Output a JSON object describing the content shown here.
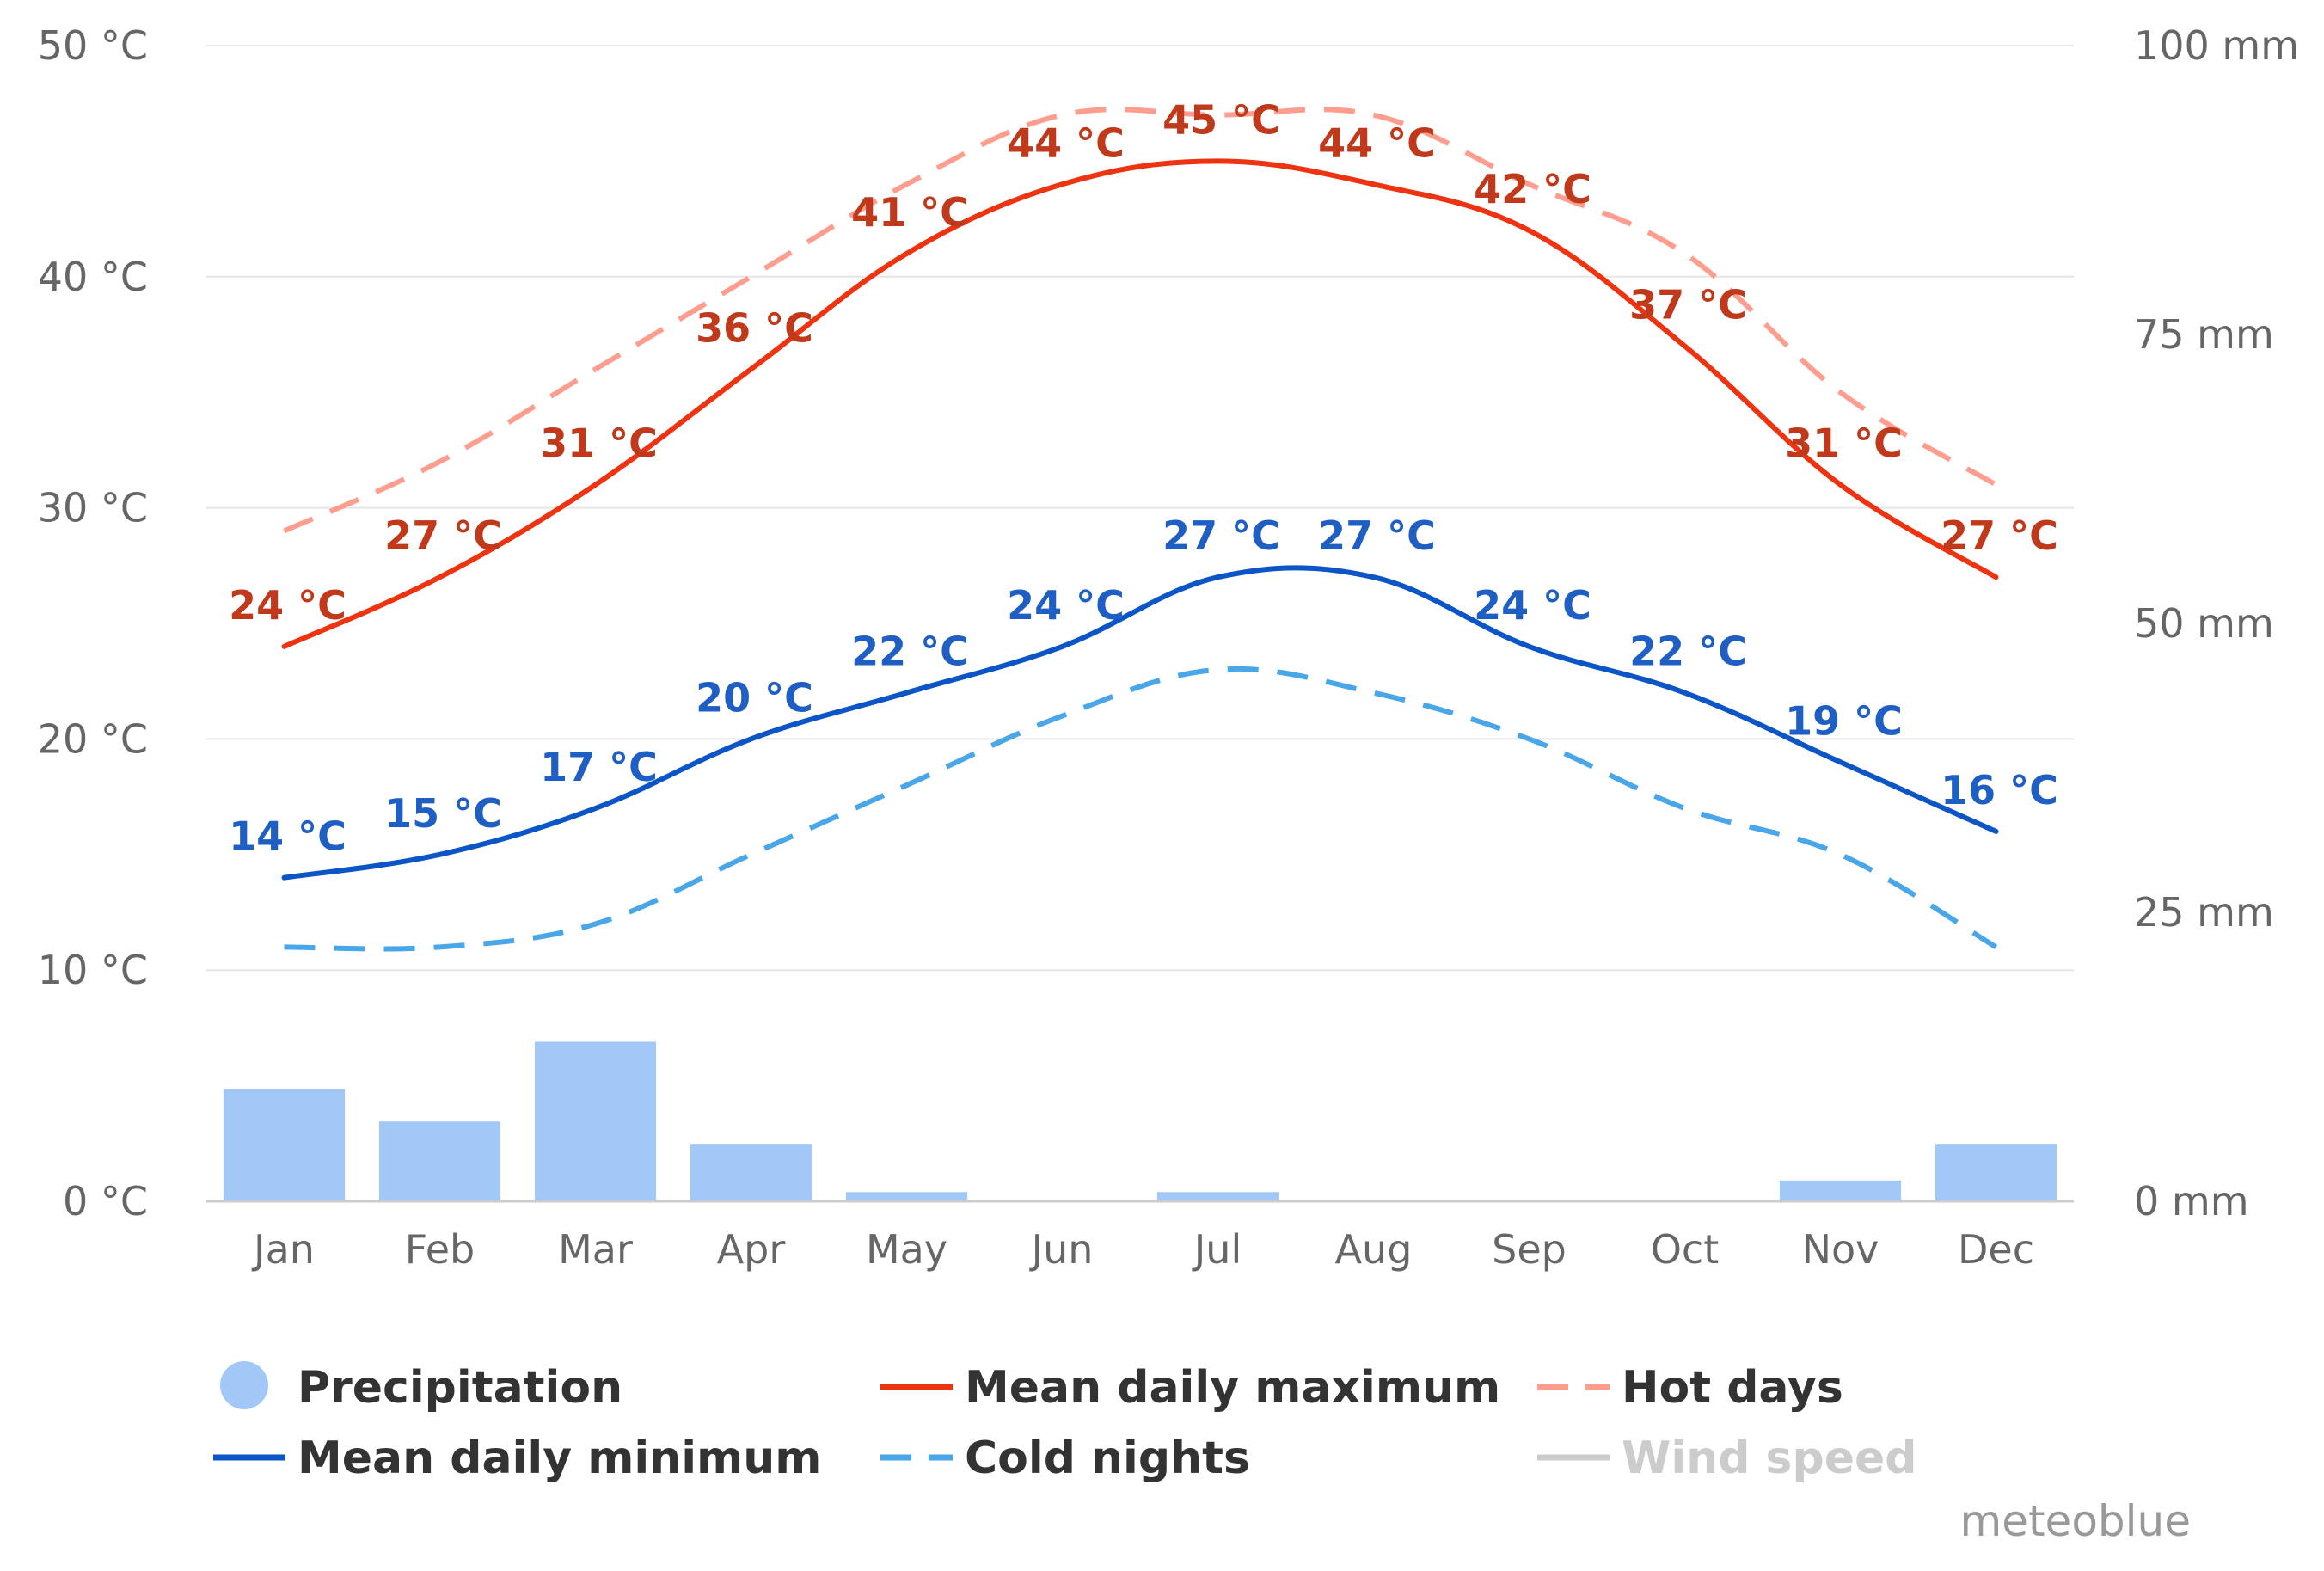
{
  "chart_data": {
    "type": "line",
    "categories": [
      "Jan",
      "Feb",
      "Mar",
      "Apr",
      "May",
      "Jun",
      "Jul",
      "Aug",
      "Sep",
      "Oct",
      "Nov",
      "Dec"
    ],
    "y_left": {
      "range": [
        0,
        50
      ],
      "ticks": [
        0,
        10,
        20,
        30,
        40,
        50
      ],
      "tick_labels": [
        "0 °C",
        "10 °C",
        "20 °C",
        "30 °C",
        "40 °C",
        "50 °C"
      ]
    },
    "y_right": {
      "range": [
        0,
        100
      ],
      "ticks": [
        0,
        25,
        50,
        75,
        100
      ],
      "tick_labels": [
        "0 mm",
        "25 mm",
        "50 mm",
        "75 mm",
        "100 mm"
      ]
    },
    "grid": true,
    "series": [
      {
        "name": "Hot days",
        "kind": "line",
        "style": "dashed",
        "axis": "left",
        "color": "#ff9e8f",
        "values": [
          29,
          32,
          36,
          40,
          44,
          47,
          47,
          47,
          44,
          41,
          35,
          31
        ]
      },
      {
        "name": "Mean daily maximum",
        "kind": "line",
        "style": "solid",
        "axis": "left",
        "color": "#ee3311",
        "values": [
          24,
          27,
          31,
          36,
          41,
          44,
          45,
          44,
          42,
          37,
          31,
          27
        ],
        "labels": [
          "24 °C",
          "27 °C",
          "31 °C",
          "36 °C",
          "41 °C",
          "44 °C",
          "45 °C",
          "44 °C",
          "42 °C",
          "37 °C",
          "31 °C",
          "27 °C"
        ]
      },
      {
        "name": "Mean daily minimum",
        "kind": "line",
        "style": "solid",
        "axis": "left",
        "color": "#0b55c7",
        "values": [
          14,
          15,
          17,
          20,
          22,
          24,
          27,
          27,
          24,
          22,
          19,
          16
        ],
        "labels": [
          "14 °C",
          "15 °C",
          "17 °C",
          "20 °C",
          "22 °C",
          "24 °C",
          "27 °C",
          "27 °C",
          "24 °C",
          "22 °C",
          "19 °C",
          "16 °C"
        ]
      },
      {
        "name": "Cold nights",
        "kind": "line",
        "style": "dashed",
        "axis": "left",
        "color": "#49a6e9",
        "values": [
          11,
          11,
          12,
          15,
          18,
          21,
          23,
          22,
          20,
          17,
          15,
          11
        ]
      },
      {
        "name": "Precipitation",
        "kind": "bar",
        "axis": "right",
        "color": "#a1c8f7",
        "values": [
          9.7,
          6.9,
          13.8,
          4.9,
          0.8,
          0,
          0.8,
          0,
          0,
          0,
          1.8,
          4.9
        ]
      }
    ],
    "legend": {
      "position": "bottom",
      "items": [
        {
          "label": "Precipitation",
          "symbol": "circle",
          "color": "#a1c8f7",
          "muted": false
        },
        {
          "label": "Mean daily maximum",
          "symbol": "line",
          "color": "#ee3311",
          "muted": false
        },
        {
          "label": "Hot days",
          "symbol": "dash",
          "color": "#ff9e8f",
          "muted": false
        },
        {
          "label": "Mean daily minimum",
          "symbol": "line",
          "color": "#0b55c7",
          "muted": false
        },
        {
          "label": "Cold nights",
          "symbol": "dash",
          "color": "#49a6e9",
          "muted": false
        },
        {
          "label": "Wind speed",
          "symbol": "line",
          "color": "#cccccc",
          "muted": true
        }
      ]
    },
    "credit": "meteoblue"
  }
}
